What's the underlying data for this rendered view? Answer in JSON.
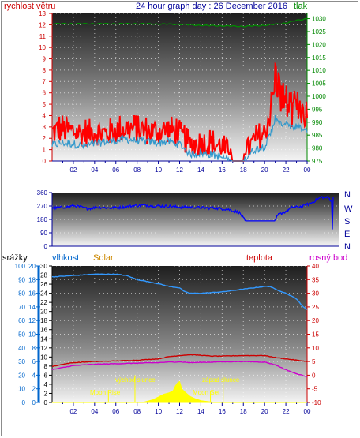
{
  "header": {
    "left_label": "rychlost větru",
    "title": "24 hour graph day : 26 December 2016",
    "right_label": "tlak"
  },
  "compass": [
    "N",
    "W",
    "S",
    "E",
    "N"
  ],
  "bottom_header": {
    "precip": "srážky",
    "humidity": "vlhkost",
    "solar": "Solar",
    "temp": "teplota",
    "dew": "rosný bod"
  },
  "annotations": {
    "moonrise": "Moon Rise",
    "sunrise": "východ slunce",
    "sunset": "západ slunce",
    "moonset": "Moon Set"
  },
  "colors": {
    "wind": "#ff0000",
    "wind_avg": "#3399cc",
    "pressure": "#008800",
    "direction": "#0000ff",
    "humidity": "#3399ff",
    "temp": "#cc0000",
    "dew": "#cc00cc",
    "solar": "#ffff00",
    "annotation": "#ffff00"
  },
  "chart_data": [
    {
      "type": "line",
      "name": "wind and pressure",
      "x_ticks": [
        "02",
        "04",
        "06",
        "08",
        "10",
        "12",
        "14",
        "16",
        "18",
        "20",
        "22",
        "00"
      ],
      "ylim_left": [
        0,
        13
      ],
      "yticks_left": [
        0,
        1,
        2,
        3,
        4,
        5,
        6,
        7,
        8,
        9,
        10,
        11,
        12,
        13
      ],
      "ylim_right": [
        975,
        1032
      ],
      "yticks_right": [
        975,
        980,
        985,
        990,
        995,
        1000,
        1005,
        1010,
        1015,
        1020,
        1025,
        1030
      ],
      "wind_gust_profile": [
        [
          0,
          2.5
        ],
        [
          1,
          2.8
        ],
        [
          2,
          2.6
        ],
        [
          3,
          2.4
        ],
        [
          4,
          2.6
        ],
        [
          5,
          2.4
        ],
        [
          6,
          2.7
        ],
        [
          7,
          2.9
        ],
        [
          8,
          2.8
        ],
        [
          9,
          2.6
        ],
        [
          10,
          2.6
        ],
        [
          11,
          2.8
        ],
        [
          12,
          2.4
        ],
        [
          13,
          1.4
        ],
        [
          14,
          1.6
        ],
        [
          15,
          1.5
        ],
        [
          16,
          1.3
        ],
        [
          17,
          0
        ],
        [
          18,
          0
        ],
        [
          19,
          1.8
        ],
        [
          20,
          2.4
        ],
        [
          20.6,
          4.5
        ],
        [
          21,
          7.2
        ],
        [
          21.5,
          5.6
        ],
        [
          22,
          5.0
        ],
        [
          22.5,
          4.2
        ],
        [
          23,
          4.5
        ],
        [
          23.5,
          4.4
        ],
        [
          24,
          4.0
        ]
      ],
      "wind_avg_profile": [
        [
          0,
          1.4
        ],
        [
          1,
          1.6
        ],
        [
          2,
          1.5
        ],
        [
          3,
          1.3
        ],
        [
          4,
          1.5
        ],
        [
          5,
          1.7
        ],
        [
          6,
          1.8
        ],
        [
          7,
          1.9
        ],
        [
          8,
          1.8
        ],
        [
          9,
          1.7
        ],
        [
          10,
          1.6
        ],
        [
          11,
          1.7
        ],
        [
          12,
          1.5
        ],
        [
          13,
          0.6
        ],
        [
          14,
          0.7
        ],
        [
          15,
          0.6
        ],
        [
          16,
          0.3
        ],
        [
          17,
          0
        ],
        [
          18,
          0
        ],
        [
          19,
          1.0
        ],
        [
          20,
          1.3
        ],
        [
          20.6,
          2.4
        ],
        [
          21,
          3.8
        ],
        [
          21.5,
          3.2
        ],
        [
          22,
          3.4
        ],
        [
          22.5,
          2.8
        ],
        [
          23,
          3.0
        ],
        [
          23.5,
          2.8
        ],
        [
          24,
          2.6
        ]
      ],
      "pressure_profile": [
        [
          0,
          1028
        ],
        [
          4,
          1028
        ],
        [
          8,
          1028
        ],
        [
          12,
          1027.8
        ],
        [
          14,
          1027.4
        ],
        [
          16,
          1027.2
        ],
        [
          18,
          1027.0
        ],
        [
          20,
          1027.4
        ],
        [
          21,
          1027.8
        ],
        [
          22,
          1028.3
        ],
        [
          23,
          1029.3
        ],
        [
          24,
          1030
        ]
      ]
    },
    {
      "type": "line",
      "name": "wind direction",
      "yticks": [
        0,
        90,
        180,
        270,
        360
      ],
      "ylim": [
        0,
        360
      ],
      "direction_profile": [
        [
          0,
          255
        ],
        [
          1,
          262
        ],
        [
          2,
          272
        ],
        [
          3,
          252
        ],
        [
          4,
          262
        ],
        [
          5,
          256
        ],
        [
          6,
          262
        ],
        [
          7,
          272
        ],
        [
          8,
          275
        ],
        [
          9,
          270
        ],
        [
          10,
          268
        ],
        [
          11,
          262
        ],
        [
          12,
          262
        ],
        [
          13,
          258
        ],
        [
          14,
          255
        ],
        [
          15,
          248
        ],
        [
          15.6,
          235
        ],
        [
          16,
          225
        ],
        [
          16.5,
          170
        ],
        [
          17,
          170
        ],
        [
          18,
          170
        ],
        [
          19,
          170
        ],
        [
          19.3,
          210
        ],
        [
          20,
          235
        ],
        [
          20.5,
          262
        ],
        [
          21,
          262
        ],
        [
          22,
          285
        ],
        [
          23,
          330
        ],
        [
          23.6,
          325
        ],
        [
          23.9,
          300
        ],
        [
          23.95,
          20
        ],
        [
          24,
          330
        ]
      ]
    },
    {
      "type": "line",
      "name": "humidity, temperature, dew point, solar",
      "x_ticks": [
        "02",
        "04",
        "06",
        "08",
        "10",
        "12",
        "14",
        "16",
        "18",
        "20",
        "22",
        "00"
      ],
      "ylim_precip": [
        0,
        20
      ],
      "yticks_precip": [
        0,
        2,
        4,
        6,
        8,
        10,
        12,
        14,
        16,
        18,
        20
      ],
      "ylim_humidity": [
        0,
        100
      ],
      "yticks_humidity": [
        0,
        10,
        20,
        30,
        40,
        50,
        60,
        70,
        80,
        90,
        100
      ],
      "ylim_solar": [
        0,
        30
      ],
      "yticks_solar": [
        0,
        2,
        4,
        6,
        8,
        10,
        12,
        14,
        16,
        18,
        20,
        22,
        24,
        26,
        28,
        30
      ],
      "ylim_temp": [
        -10,
        40
      ],
      "yticks_temp": [
        -10,
        -5,
        0,
        5,
        10,
        15,
        20,
        25,
        30,
        35,
        40
      ],
      "humidity_profile": [
        [
          0,
          92
        ],
        [
          2,
          93
        ],
        [
          4,
          94
        ],
        [
          6,
          94
        ],
        [
          7,
          93
        ],
        [
          8,
          90
        ],
        [
          10,
          87
        ],
        [
          11,
          85
        ],
        [
          12,
          84
        ],
        [
          12.5,
          81
        ],
        [
          13,
          80
        ],
        [
          14,
          80
        ],
        [
          16,
          81
        ],
        [
          18,
          83
        ],
        [
          19,
          84
        ],
        [
          20,
          85
        ],
        [
          20.5,
          85
        ],
        [
          21,
          83
        ],
        [
          22,
          80
        ],
        [
          23,
          76
        ],
        [
          23.5,
          71
        ],
        [
          24,
          68
        ]
      ],
      "temp_profile": [
        [
          0,
          3.2
        ],
        [
          1,
          4.0
        ],
        [
          2,
          4.6
        ],
        [
          4,
          5.0
        ],
        [
          6,
          5.2
        ],
        [
          8,
          5.5
        ],
        [
          10,
          6.0
        ],
        [
          11,
          6.8
        ],
        [
          12,
          7.2
        ],
        [
          13,
          7.5
        ],
        [
          14,
          7.3
        ],
        [
          15,
          7.0
        ],
        [
          16,
          7.0
        ],
        [
          18,
          7.2
        ],
        [
          20,
          7.2
        ],
        [
          21,
          6.5
        ],
        [
          22,
          6.0
        ],
        [
          23,
          5.5
        ],
        [
          24,
          5.0
        ]
      ],
      "dew_profile": [
        [
          0,
          2.0
        ],
        [
          1,
          2.8
        ],
        [
          2,
          3.5
        ],
        [
          4,
          4.0
        ],
        [
          6,
          4.2
        ],
        [
          8,
          4.4
        ],
        [
          10,
          4.6
        ],
        [
          11,
          4.8
        ],
        [
          12,
          4.9
        ],
        [
          13,
          4.6
        ],
        [
          14,
          4.7
        ],
        [
          16,
          4.9
        ],
        [
          18,
          5.0
        ],
        [
          20,
          4.8
        ],
        [
          21,
          3.8
        ],
        [
          22,
          2.0
        ],
        [
          23,
          0.5
        ],
        [
          24,
          -0.5
        ]
      ],
      "solar_profile": [
        [
          0,
          0
        ],
        [
          8,
          0
        ],
        [
          8.7,
          0.1
        ],
        [
          9.5,
          0.6
        ],
        [
          10,
          1.2
        ],
        [
          10.5,
          1.8
        ],
        [
          11,
          2.1
        ],
        [
          11.4,
          2.6
        ],
        [
          11.6,
          3.6
        ],
        [
          11.8,
          4.3
        ],
        [
          12,
          4.6
        ],
        [
          12.2,
          3.0
        ],
        [
          12.5,
          2.3
        ],
        [
          13,
          1.3
        ],
        [
          13.5,
          0.8
        ],
        [
          14,
          0.4
        ],
        [
          15,
          0.1
        ],
        [
          16,
          0
        ],
        [
          24,
          0
        ]
      ]
    }
  ]
}
